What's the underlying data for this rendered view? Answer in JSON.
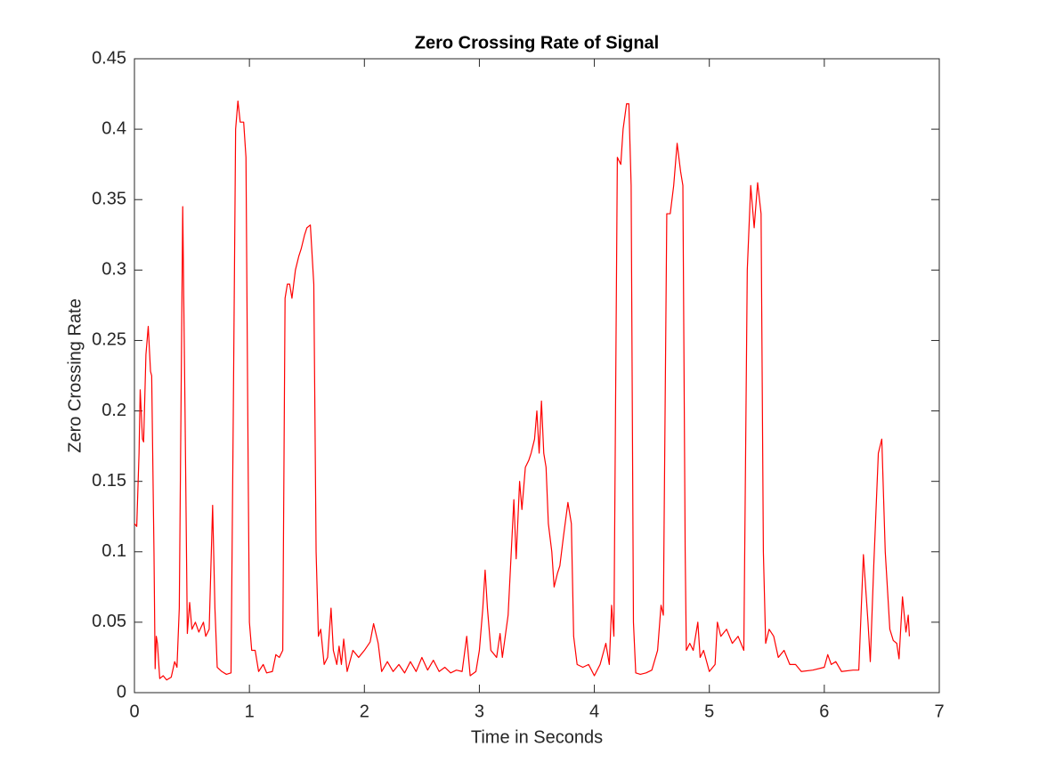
{
  "chart_data": {
    "type": "line",
    "title": "Zero Crossing Rate of Signal",
    "x_label": "Time in Seconds",
    "y_label": "Zero Crossing Rate",
    "color": "#ff0000",
    "xlim": [
      0,
      7
    ],
    "xticks": [
      0,
      1,
      2,
      3,
      4,
      5,
      6,
      7
    ],
    "ylim": [
      0,
      0.45
    ],
    "yticks": [
      0,
      0.05,
      0.1,
      0.15,
      0.2,
      0.25,
      0.3,
      0.35,
      0.4,
      0.45
    ],
    "grid": false,
    "x": [
      0.0,
      0.02,
      0.04,
      0.05,
      0.07,
      0.08,
      0.1,
      0.12,
      0.14,
      0.15,
      0.17,
      0.18,
      0.19,
      0.2,
      0.22,
      0.25,
      0.28,
      0.32,
      0.35,
      0.37,
      0.39,
      0.42,
      0.44,
      0.46,
      0.48,
      0.5,
      0.53,
      0.56,
      0.6,
      0.62,
      0.65,
      0.68,
      0.7,
      0.72,
      0.76,
      0.8,
      0.84,
      0.86,
      0.88,
      0.9,
      0.92,
      0.95,
      0.97,
      0.99,
      1.0,
      1.02,
      1.05,
      1.08,
      1.12,
      1.15,
      1.2,
      1.23,
      1.26,
      1.29,
      1.31,
      1.33,
      1.35,
      1.37,
      1.4,
      1.43,
      1.45,
      1.48,
      1.5,
      1.53,
      1.56,
      1.58,
      1.6,
      1.62,
      1.65,
      1.68,
      1.71,
      1.73,
      1.76,
      1.78,
      1.8,
      1.82,
      1.85,
      1.9,
      1.95,
      2.0,
      2.05,
      2.08,
      2.12,
      2.15,
      2.2,
      2.25,
      2.3,
      2.35,
      2.4,
      2.45,
      2.5,
      2.55,
      2.6,
      2.65,
      2.7,
      2.75,
      2.8,
      2.85,
      2.89,
      2.92,
      2.97,
      3.0,
      3.03,
      3.05,
      3.07,
      3.1,
      3.15,
      3.18,
      3.2,
      3.25,
      3.3,
      3.32,
      3.35,
      3.37,
      3.4,
      3.43,
      3.45,
      3.48,
      3.5,
      3.52,
      3.54,
      3.56,
      3.58,
      3.6,
      3.63,
      3.65,
      3.68,
      3.7,
      3.73,
      3.77,
      3.8,
      3.82,
      3.85,
      3.9,
      3.95,
      4.0,
      4.05,
      4.1,
      4.13,
      4.15,
      4.17,
      4.2,
      4.23,
      4.25,
      4.28,
      4.3,
      4.32,
      4.34,
      4.36,
      4.4,
      4.45,
      4.5,
      4.55,
      4.58,
      4.6,
      4.63,
      4.66,
      4.69,
      4.72,
      4.75,
      4.77,
      4.79,
      4.8,
      4.83,
      4.86,
      4.9,
      4.92,
      4.95,
      5.0,
      5.05,
      5.07,
      5.1,
      5.15,
      5.2,
      5.25,
      5.3,
      5.33,
      5.36,
      5.39,
      5.42,
      5.45,
      5.47,
      5.49,
      5.52,
      5.56,
      5.6,
      5.65,
      5.7,
      5.75,
      5.8,
      5.9,
      6.0,
      6.03,
      6.06,
      6.1,
      6.15,
      6.25,
      6.3,
      6.34,
      6.38,
      6.4,
      6.43,
      6.47,
      6.5,
      6.53,
      6.57,
      6.6,
      6.63,
      6.65,
      6.68,
      6.71,
      6.73,
      6.74
    ],
    "values": [
      0.12,
      0.118,
      0.17,
      0.215,
      0.18,
      0.178,
      0.24,
      0.26,
      0.228,
      0.225,
      0.1,
      0.017,
      0.04,
      0.035,
      0.01,
      0.012,
      0.009,
      0.011,
      0.022,
      0.018,
      0.06,
      0.345,
      0.2,
      0.042,
      0.064,
      0.045,
      0.05,
      0.043,
      0.05,
      0.04,
      0.045,
      0.133,
      0.06,
      0.018,
      0.015,
      0.013,
      0.014,
      0.2,
      0.4,
      0.42,
      0.405,
      0.405,
      0.38,
      0.15,
      0.05,
      0.03,
      0.03,
      0.015,
      0.02,
      0.014,
      0.015,
      0.027,
      0.025,
      0.03,
      0.28,
      0.29,
      0.29,
      0.28,
      0.3,
      0.31,
      0.315,
      0.325,
      0.33,
      0.332,
      0.29,
      0.1,
      0.04,
      0.045,
      0.02,
      0.025,
      0.06,
      0.03,
      0.02,
      0.033,
      0.02,
      0.038,
      0.015,
      0.03,
      0.025,
      0.03,
      0.036,
      0.049,
      0.035,
      0.015,
      0.022,
      0.015,
      0.02,
      0.014,
      0.022,
      0.015,
      0.025,
      0.016,
      0.023,
      0.015,
      0.018,
      0.014,
      0.016,
      0.015,
      0.04,
      0.012,
      0.015,
      0.03,
      0.06,
      0.087,
      0.06,
      0.03,
      0.025,
      0.042,
      0.025,
      0.055,
      0.137,
      0.095,
      0.15,
      0.13,
      0.16,
      0.165,
      0.17,
      0.18,
      0.2,
      0.17,
      0.207,
      0.17,
      0.16,
      0.12,
      0.1,
      0.075,
      0.085,
      0.09,
      0.11,
      0.135,
      0.12,
      0.04,
      0.02,
      0.018,
      0.02,
      0.012,
      0.02,
      0.035,
      0.02,
      0.062,
      0.04,
      0.38,
      0.375,
      0.4,
      0.418,
      0.418,
      0.36,
      0.05,
      0.014,
      0.013,
      0.014,
      0.016,
      0.03,
      0.062,
      0.055,
      0.34,
      0.34,
      0.36,
      0.39,
      0.37,
      0.36,
      0.1,
      0.03,
      0.035,
      0.03,
      0.05,
      0.025,
      0.03,
      0.015,
      0.02,
      0.05,
      0.04,
      0.045,
      0.035,
      0.04,
      0.03,
      0.3,
      0.36,
      0.33,
      0.362,
      0.34,
      0.1,
      0.035,
      0.045,
      0.04,
      0.025,
      0.03,
      0.02,
      0.02,
      0.015,
      0.016,
      0.018,
      0.027,
      0.02,
      0.022,
      0.015,
      0.016,
      0.016,
      0.098,
      0.05,
      0.022,
      0.09,
      0.17,
      0.18,
      0.1,
      0.045,
      0.037,
      0.035,
      0.024,
      0.068,
      0.043,
      0.055,
      0.04
    ]
  }
}
